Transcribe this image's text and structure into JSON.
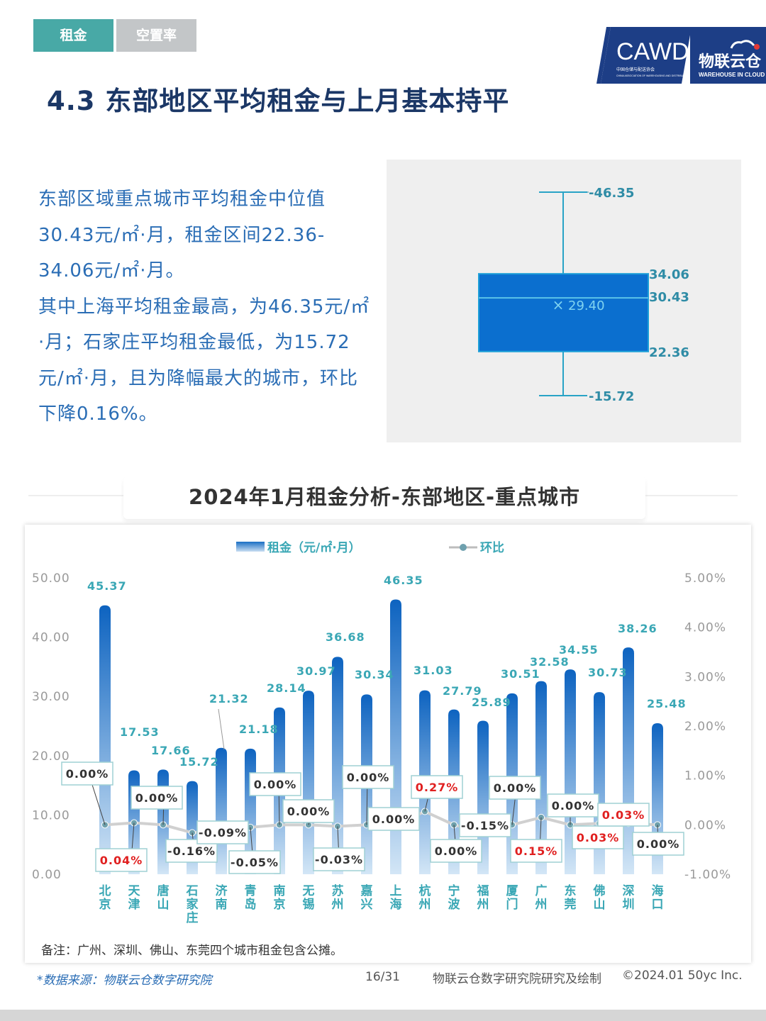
{
  "tabs": [
    {
      "label": "租金",
      "active": true
    },
    {
      "label": "空置率",
      "active": false
    }
  ],
  "logo": {
    "text_main": "CAWD",
    "text_sub": "中国仓储与配送协会",
    "text_en": "CHINA ASSOCIATION OF WAREHOUSING AND DISTRIBUTION",
    "brand": "物联云仓",
    "brand_en": "WAREHOUSE IN CLOUD"
  },
  "title": "4.3 东部地区平均租金与上月基本持平",
  "summary": [
    "东部区域重点城市平均租金中位值30.43元/㎡·月，租金区间22.36-34.06元/㎡·月。",
    "其中上海平均租金最高，为46.35元/㎡·月；石家庄平均租金最低，为15.72元/㎡·月，且为降幅最大的城市，环比下降0.16%。"
  ],
  "colors": {
    "accent": "#48a9a6",
    "bar": "#1a6fc4",
    "box": "#0b6fcf",
    "negative": "#e02020",
    "label": "#3aa7b5"
  },
  "chart_data": [
    {
      "type": "boxplot",
      "max": 46.35,
      "q3": 34.06,
      "median": 30.43,
      "mean": 29.4,
      "q1": 22.36,
      "min": 15.72,
      "labels": {
        "max": "46.35",
        "q3": "34.06",
        "median": "30.43",
        "mean": "29.40",
        "q1": "22.36",
        "min": "15.72"
      }
    },
    {
      "type": "bar+line",
      "title": "2024年1月租金分析-东部地区-重点城市",
      "legend": {
        "bar": "租金（元/㎡·月）",
        "line": "环比"
      },
      "categories": [
        "北京",
        "天津",
        "唐山",
        "石家庄",
        "济南",
        "青岛",
        "南京",
        "无锡",
        "苏州",
        "嘉兴",
        "上海",
        "杭州",
        "宁波",
        "福州",
        "厦门",
        "广州",
        "东莞",
        "佛山",
        "深圳",
        "海口"
      ],
      "rent": [
        45.37,
        17.53,
        17.66,
        15.72,
        21.32,
        21.18,
        28.14,
        30.97,
        36.68,
        30.34,
        46.35,
        31.03,
        27.79,
        25.89,
        30.51,
        32.58,
        34.55,
        30.73,
        38.26,
        25.48
      ],
      "rent_labels": [
        "45.37",
        "17.53",
        "17.66",
        "15.72",
        "21.32",
        "21.18",
        "28.14",
        "30.97",
        "36.68",
        "30.34",
        "46.35",
        "31.03",
        "27.79",
        "25.89",
        "30.51",
        "32.58",
        "34.55",
        "30.73",
        "38.26",
        "25.48"
      ],
      "mom": [
        0.0,
        0.04,
        0.0,
        -0.16,
        -0.09,
        -0.05,
        0.0,
        0.0,
        -0.03,
        0.0,
        0.0,
        0.27,
        0.0,
        -0.15,
        0.0,
        0.15,
        0.0,
        0.03,
        0.03,
        0.0
      ],
      "mom_labels": [
        "0.00%",
        "0.04%",
        "0.00%",
        "-0.16%",
        "-0.09%",
        "-0.05%",
        "0.00%",
        "0.00%",
        "-0.03%",
        "0.00%",
        "0.00%",
        "0.27%",
        "0.00%",
        "-0.15%",
        "0.00%",
        "0.15%",
        "0.00%",
        "0.03%",
        "0.03%",
        "0.00%"
      ],
      "y_left": {
        "min": 0,
        "max": 50,
        "ticks": [
          "0.00",
          "10.00",
          "20.00",
          "30.00",
          "40.00",
          "50.00"
        ]
      },
      "y_right": {
        "min": -1,
        "max": 5,
        "ticks": [
          "-1.00%",
          "0.00%",
          "1.00%",
          "2.00%",
          "3.00%",
          "4.00%",
          "5.00%"
        ]
      }
    }
  ],
  "note": "备注：广州、深圳、佛山、东莞四个城市租金包含公摊。",
  "footer": {
    "source": "*数据来源：物联云仓数字研究院",
    "page": "16/31",
    "credit": "物联云仓数字研究院研究及绘制",
    "copyright": "©2024.01 50yc Inc."
  }
}
